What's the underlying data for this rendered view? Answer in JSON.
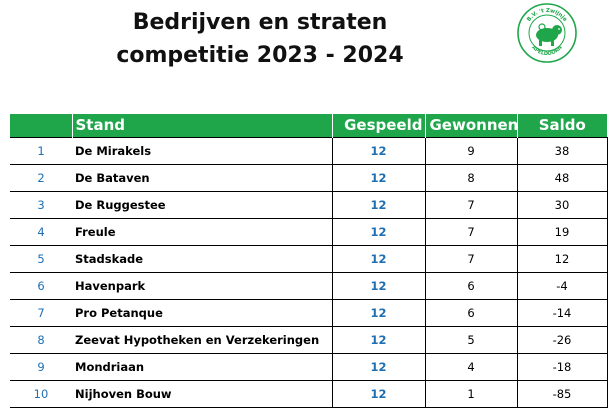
{
  "title": {
    "line1": "Bedrijven en straten",
    "line2": "competitie 2023 - 2024"
  },
  "logo": {
    "icon": "club-logo-icon",
    "text_top": "B.V. 't Zwijnje",
    "text_bottom": "APELDOORN",
    "color": "#1fa64a"
  },
  "table": {
    "header_color": "#1fa64a",
    "columns": {
      "rank": "",
      "team": "Stand",
      "played": "Gespeeld",
      "won": "Gewonnen",
      "saldo": "Saldo"
    },
    "rows": [
      {
        "rank": "1",
        "team": "De Mirakels",
        "played": "12",
        "won": "9",
        "saldo": "38"
      },
      {
        "rank": "2",
        "team": "De Bataven",
        "played": "12",
        "won": "8",
        "saldo": "48"
      },
      {
        "rank": "3",
        "team": "De Ruggestee",
        "played": "12",
        "won": "7",
        "saldo": "30"
      },
      {
        "rank": "4",
        "team": "Freule",
        "played": "12",
        "won": "7",
        "saldo": "19"
      },
      {
        "rank": "5",
        "team": "Stadskade",
        "played": "12",
        "won": "7",
        "saldo": "12"
      },
      {
        "rank": "6",
        "team": "Havenpark",
        "played": "12",
        "won": "6",
        "saldo": "-4"
      },
      {
        "rank": "7",
        "team": "Pro Petanque",
        "played": "12",
        "won": "6",
        "saldo": "-14"
      },
      {
        "rank": "8",
        "team": "Zeevat Hypotheken en Verzekeringen",
        "played": "12",
        "won": "5",
        "saldo": "-26"
      },
      {
        "rank": "9",
        "team": "Mondriaan",
        "played": "12",
        "won": "4",
        "saldo": "-18"
      },
      {
        "rank": "10",
        "team": "Nijhoven Bouw",
        "played": "12",
        "won": "1",
        "saldo": "-85"
      }
    ]
  }
}
